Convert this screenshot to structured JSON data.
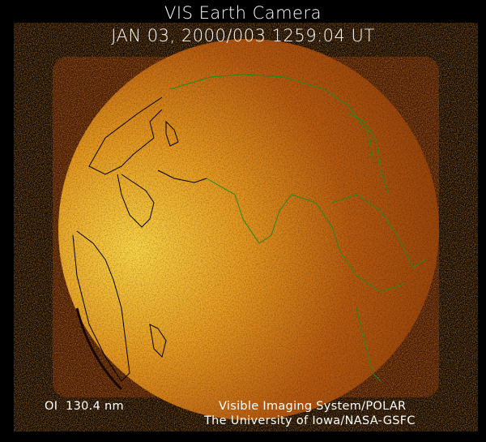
{
  "header": {
    "title": "VIS Earth Camera",
    "timestamp": "JAN 03, 2000/003 1259:04 UT"
  },
  "footer": {
    "band": "OI  130.4 nm",
    "instrument": "Visible Imaging System/POLAR",
    "institution": "The University of Iowa/NASA-GSFC"
  },
  "colors": {
    "background": "#000000",
    "disk_bright": "#ffd040",
    "disk_dark": "#8a3a08",
    "coastline_dayside": "#000000",
    "coastline_nightside": "#1f8a1f"
  }
}
